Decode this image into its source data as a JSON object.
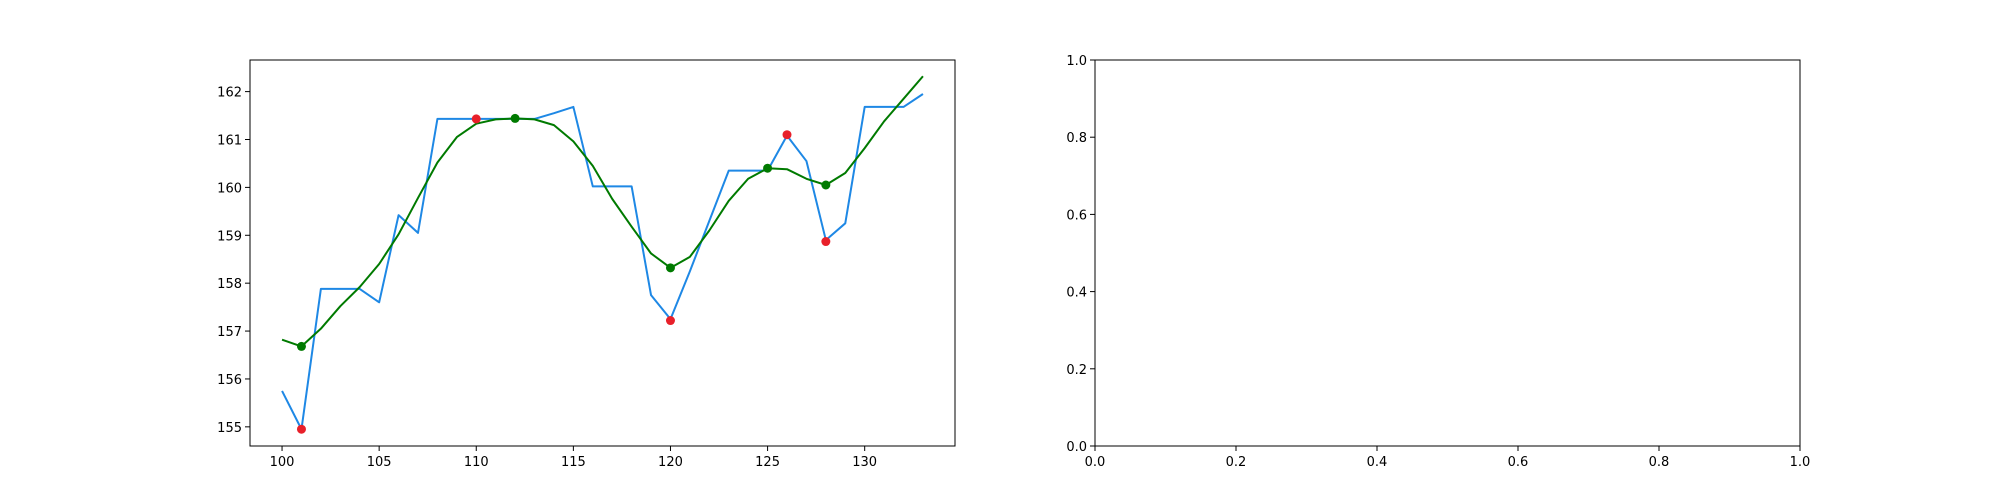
{
  "chart_data": [
    {
      "type": "line",
      "x": [
        100,
        101,
        102,
        103,
        104,
        105,
        106,
        107,
        108,
        109,
        110,
        111,
        112,
        113,
        114,
        115,
        116,
        117,
        118,
        119,
        120,
        121,
        122,
        123,
        124,
        125,
        126,
        127,
        128,
        129,
        130,
        131,
        132,
        133
      ],
      "series": [
        {
          "color": "#1e88e5",
          "values": [
            155.75,
            154.95,
            157.88,
            157.88,
            157.88,
            157.6,
            159.42,
            159.05,
            161.43,
            161.43,
            161.43,
            161.43,
            161.43,
            161.43,
            161.55,
            161.68,
            160.02,
            160.02,
            160.02,
            157.75,
            157.25,
            158.25,
            159.3,
            160.35,
            160.35,
            160.35,
            161.08,
            160.55,
            158.9,
            159.25,
            161.68,
            161.68,
            161.68,
            161.95
          ]
        },
        {
          "color": "#007a00",
          "values": [
            156.82,
            156.68,
            157.05,
            157.52,
            157.92,
            158.4,
            159.02,
            159.78,
            160.52,
            161.05,
            161.33,
            161.42,
            161.44,
            161.42,
            161.3,
            160.96,
            160.45,
            159.76,
            159.18,
            158.62,
            158.32,
            158.55,
            159.1,
            159.72,
            160.18,
            160.4,
            160.38,
            160.18,
            160.05,
            160.3,
            160.82,
            161.38,
            161.85,
            162.32
          ]
        }
      ],
      "extrema_points": {
        "color": "#e8202a",
        "points": [
          {
            "x": 101,
            "y": 154.95
          },
          {
            "x": 110,
            "y": 161.43
          },
          {
            "x": 120,
            "y": 157.22
          },
          {
            "x": 126,
            "y": 161.1
          },
          {
            "x": 128,
            "y": 158.87
          }
        ]
      },
      "smoothed_extrema_points": {
        "color": "#007a00",
        "points": [
          {
            "x": 101,
            "y": 156.68
          },
          {
            "x": 112,
            "y": 161.44
          },
          {
            "x": 120,
            "y": 158.32
          },
          {
            "x": 125,
            "y": 160.4
          },
          {
            "x": 128,
            "y": 160.05
          }
        ]
      },
      "xlim": [
        98.35,
        134.65
      ],
      "ylim": [
        154.6,
        162.66
      ],
      "xticks": [
        {
          "value": 100,
          "label": "100"
        },
        {
          "value": 105,
          "label": "105"
        },
        {
          "value": 110,
          "label": "110"
        },
        {
          "value": 115,
          "label": "115"
        },
        {
          "value": 120,
          "label": "120"
        },
        {
          "value": 125,
          "label": "125"
        },
        {
          "value": 130,
          "label": "130"
        }
      ],
      "yticks": [
        {
          "value": 155,
          "label": "155"
        },
        {
          "value": 156,
          "label": "156"
        },
        {
          "value": 157,
          "label": "157"
        },
        {
          "value": 158,
          "label": "158"
        },
        {
          "value": 159,
          "label": "159"
        },
        {
          "value": 160,
          "label": "160"
        },
        {
          "value": 161,
          "label": "161"
        },
        {
          "value": 162,
          "label": "162"
        }
      ],
      "grid": false
    },
    {
      "type": "line",
      "series": [],
      "xlim": [
        0,
        1
      ],
      "ylim": [
        0,
        1
      ],
      "xticks": [
        {
          "value": 0,
          "label": "0.0"
        },
        {
          "value": 0.2,
          "label": "0.2"
        },
        {
          "value": 0.4,
          "label": "0.4"
        },
        {
          "value": 0.6,
          "label": "0.6"
        },
        {
          "value": 0.8,
          "label": "0.8"
        },
        {
          "value": 1,
          "label": "1.0"
        }
      ],
      "yticks": [
        {
          "value": 0,
          "label": "0.0"
        },
        {
          "value": 0.2,
          "label": "0.2"
        },
        {
          "value": 0.4,
          "label": "0.4"
        },
        {
          "value": 0.6,
          "label": "0.6"
        },
        {
          "value": 0.8,
          "label": "0.8"
        },
        {
          "value": 1,
          "label": "1.0"
        }
      ],
      "grid": false
    }
  ]
}
